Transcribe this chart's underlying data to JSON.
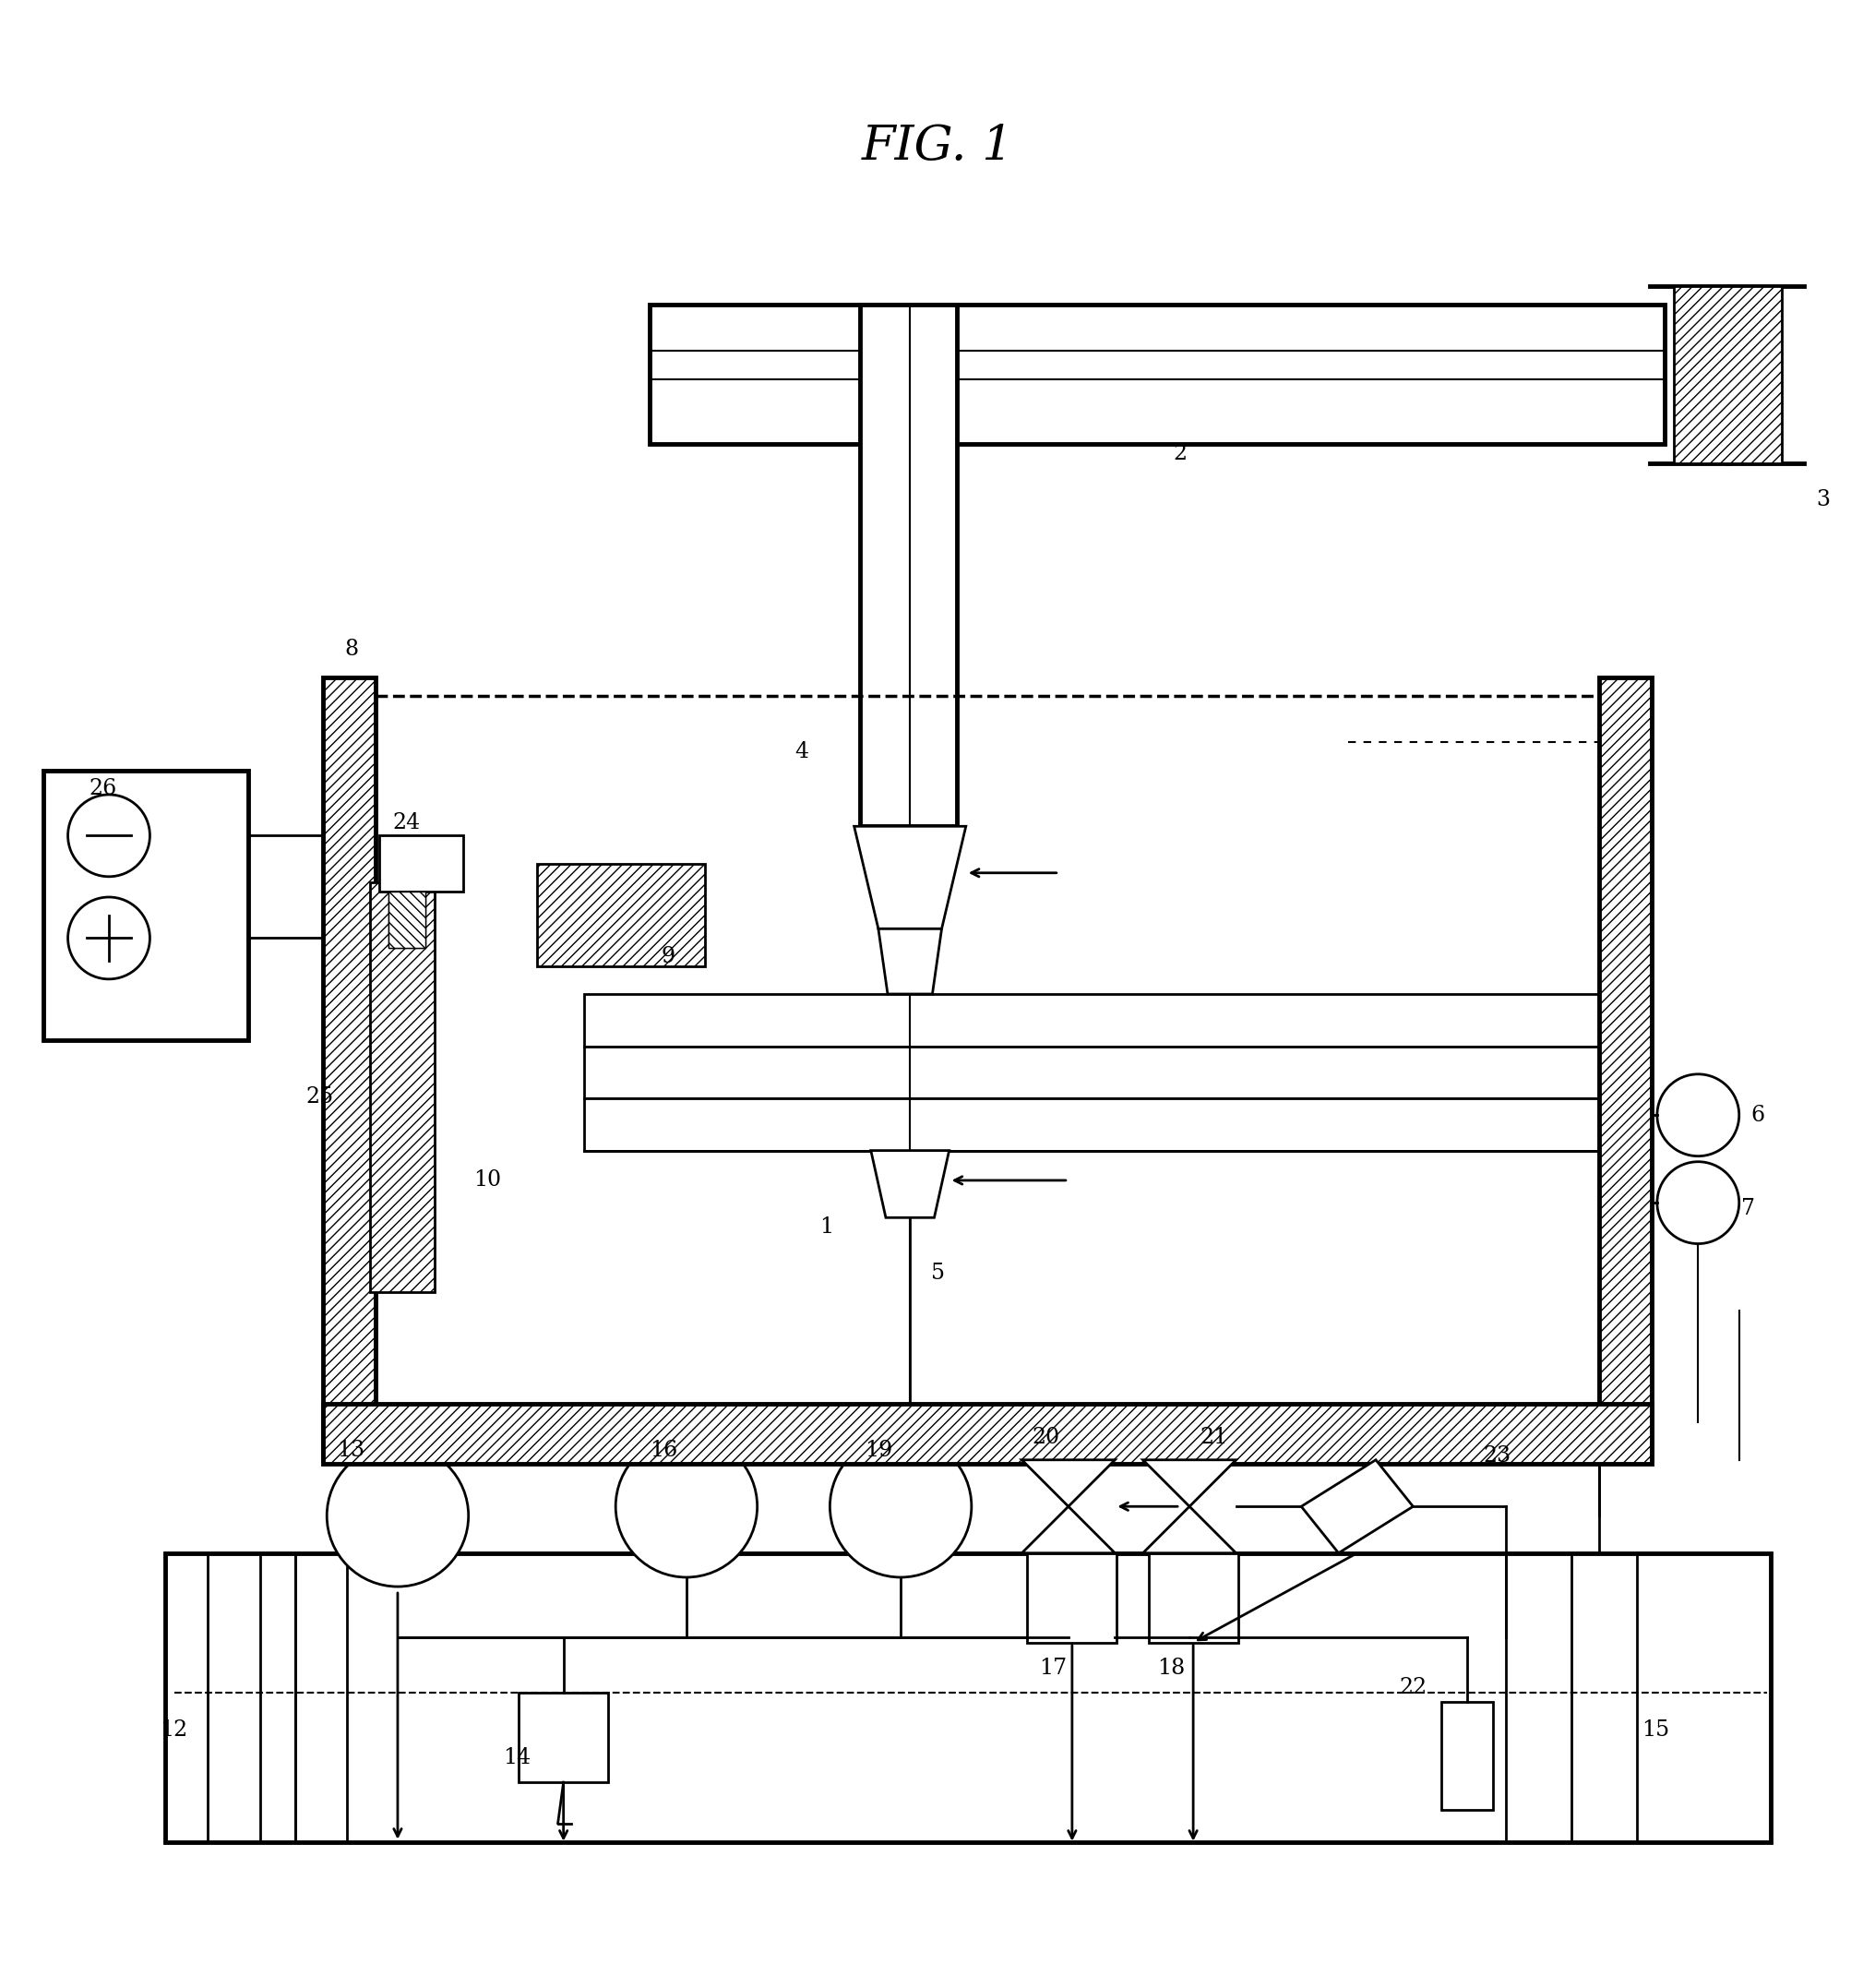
{
  "title": "FIG. 1",
  "bg_color": "#ffffff",
  "fig_width": 20.33,
  "fig_height": 21.54,
  "lw": 2.0,
  "lw_thick": 3.5,
  "lw_thin": 1.5
}
